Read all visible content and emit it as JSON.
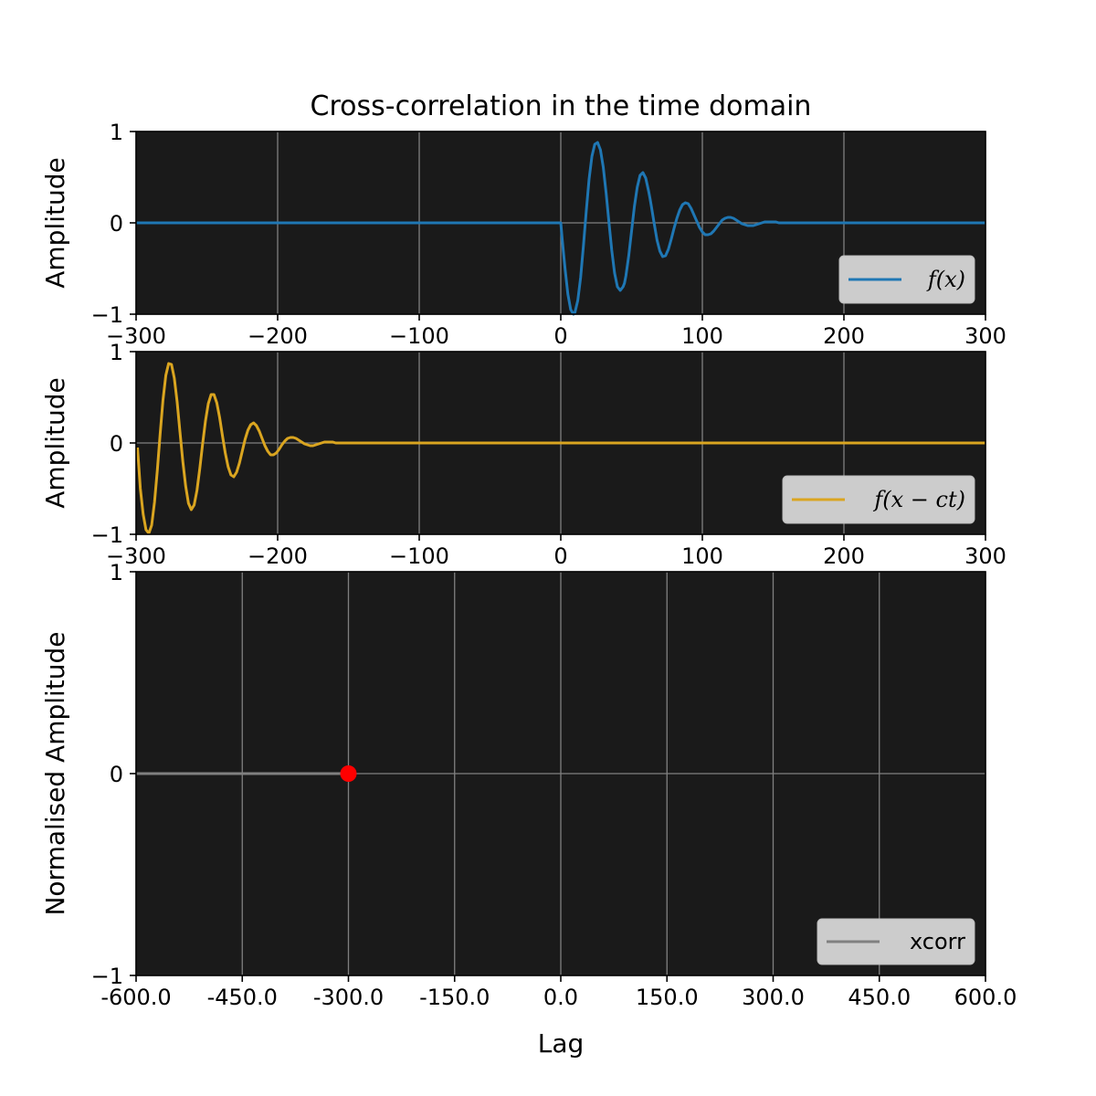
{
  "colors": {
    "background": "#1a1a1a",
    "grid": "#808080",
    "signal_f": "#1f77b4",
    "signal_shifted": "#daa520",
    "xcorr": "#808080",
    "marker": "#ff0000",
    "legend_bg": "#cccccc"
  },
  "chart_data": [
    {
      "type": "line",
      "title": "Cross-correlation in the time domain",
      "xlabel": "",
      "ylabel": "Amplitude",
      "xlim": [
        -300,
        300
      ],
      "ylim": [
        -1,
        1
      ],
      "grid": true,
      "legend_position": "lower-right",
      "xtick_labels": [
        "−300",
        "−200",
        "−100",
        "0",
        "100",
        "200",
        "300"
      ],
      "ytick_labels": [
        "1",
        "0",
        "−1"
      ],
      "series": [
        {
          "name": "f(x)",
          "color": "#1f77b4",
          "x": [
            -300,
            0,
            1,
            3,
            5,
            7,
            9,
            10,
            12,
            14,
            16,
            18,
            20,
            22,
            24,
            26,
            28,
            30,
            32,
            34,
            36,
            38,
            40,
            42,
            44,
            45,
            46,
            48,
            50,
            52,
            54,
            56,
            58,
            60,
            62,
            63,
            64,
            66,
            68,
            70,
            72,
            74,
            76,
            78,
            80,
            82,
            84,
            86,
            88,
            90,
            92,
            94,
            96,
            98,
            100,
            102,
            104,
            106,
            108,
            110,
            112,
            114,
            116,
            118,
            120,
            122,
            124,
            126,
            128,
            130,
            132,
            134,
            136,
            138,
            140,
            142,
            144,
            146,
            148,
            150,
            152,
            154,
            156,
            158,
            160,
            162,
            164,
            166,
            168,
            170,
            172,
            174,
            176,
            178,
            180,
            300
          ],
          "values": [
            0,
            0,
            -0.18,
            -0.5,
            -0.78,
            -0.95,
            -1.0,
            -0.98,
            -0.85,
            -0.6,
            -0.25,
            0.13,
            0.48,
            0.73,
            0.86,
            0.88,
            0.8,
            0.61,
            0.33,
            0.01,
            -0.3,
            -0.55,
            -0.7,
            -0.74,
            -0.7,
            -0.66,
            -0.58,
            -0.36,
            -0.09,
            0.18,
            0.39,
            0.52,
            0.55,
            0.49,
            0.35,
            0.27,
            0.18,
            -0.01,
            -0.19,
            -0.31,
            -0.37,
            -0.36,
            -0.29,
            -0.18,
            -0.06,
            0.05,
            0.14,
            0.2,
            0.22,
            0.21,
            0.16,
            0.09,
            0.02,
            -0.05,
            -0.1,
            -0.13,
            -0.13,
            -0.12,
            -0.09,
            -0.05,
            -0.01,
            0.03,
            0.05,
            0.06,
            0.06,
            0.05,
            0.03,
            0.01,
            -0.01,
            -0.02,
            -0.03,
            -0.03,
            -0.03,
            -0.02,
            -0.01,
            0.0,
            0.01,
            0.01,
            0.01,
            0.01,
            0.01,
            0.0,
            0.0,
            0.0,
            0.0,
            0.0,
            0.0,
            0.0,
            0.0,
            0.0,
            0.0,
            0.0,
            0.0,
            0.0,
            0.0,
            0
          ]
        }
      ]
    },
    {
      "type": "line",
      "title": "",
      "xlabel": "",
      "ylabel": "Amplitude",
      "xlim": [
        -300,
        300
      ],
      "ylim": [
        -1,
        1
      ],
      "grid": true,
      "legend_position": "lower-right",
      "xtick_labels": [
        "−300",
        "−200",
        "−100",
        "0",
        "100",
        "200",
        "300"
      ],
      "ytick_labels": [
        "1",
        "0",
        "−1"
      ],
      "series": [
        {
          "name": "f(x − ct)",
          "color": "#daa520",
          "x": [
            -299,
            -297,
            -295,
            -293,
            -291,
            -289,
            -287,
            -285,
            -283,
            -281,
            -279,
            -277,
            -275,
            -273,
            -271,
            -269,
            -267,
            -265,
            -263,
            -261,
            -259,
            -257,
            -255,
            -253,
            -251,
            -249,
            -247,
            -245,
            -243,
            -241,
            -239,
            -237,
            -235,
            -233,
            -231,
            -229,
            -227,
            -225,
            -223,
            -221,
            -219,
            -217,
            -215,
            -213,
            -211,
            -209,
            -207,
            -205,
            -203,
            -201,
            -199,
            -197,
            -195,
            -193,
            -191,
            -189,
            -187,
            -185,
            -183,
            -181,
            -179,
            -177,
            -175,
            -173,
            -171,
            -169,
            -167,
            -165,
            -163,
            -161,
            -159,
            -157,
            -155,
            -153,
            -151,
            -149,
            -147,
            -145,
            -143,
            -141,
            -139,
            -137,
            -135,
            -133,
            -131,
            -129,
            -127,
            -125,
            -123,
            -121,
            -119,
            300
          ],
          "values": [
            -0.05,
            -0.5,
            -0.78,
            -0.95,
            -0.99,
            -0.9,
            -0.65,
            -0.3,
            0.1,
            0.47,
            0.74,
            0.87,
            0.86,
            0.71,
            0.45,
            0.12,
            -0.2,
            -0.47,
            -0.66,
            -0.73,
            -0.68,
            -0.52,
            -0.28,
            -0.01,
            0.24,
            0.43,
            0.53,
            0.53,
            0.44,
            0.28,
            0.08,
            -0.11,
            -0.26,
            -0.35,
            -0.37,
            -0.32,
            -0.22,
            -0.09,
            0.04,
            0.14,
            0.2,
            0.22,
            0.19,
            0.13,
            0.05,
            -0.03,
            -0.09,
            -0.13,
            -0.13,
            -0.11,
            -0.07,
            -0.02,
            0.02,
            0.05,
            0.06,
            0.06,
            0.05,
            0.03,
            0.01,
            -0.01,
            -0.02,
            -0.03,
            -0.03,
            -0.02,
            -0.01,
            0.0,
            0.01,
            0.01,
            0.01,
            0.01,
            0.0,
            0.0,
            0.0,
            0.0,
            0.0,
            0.0,
            0.0,
            0.0,
            0.0,
            0.0,
            0.0,
            0.0,
            0.0,
            0.0,
            0.0,
            0.0,
            0.0,
            0.0,
            0.0,
            0.0,
            0.0,
            0
          ]
        }
      ]
    },
    {
      "type": "line",
      "title": "",
      "xlabel": "Lag",
      "ylabel": "Normalised Amplitude",
      "xlim": [
        -600,
        600
      ],
      "ylim": [
        -1,
        1
      ],
      "grid": true,
      "legend_position": "lower-right",
      "xtick_labels": [
        "-600.0",
        "-450.0",
        "-300.0",
        "-150.0",
        "0.0",
        "150.0",
        "300.0",
        "450.0",
        "600.0"
      ],
      "ytick_labels": [
        "1",
        "0",
        "−1"
      ],
      "series": [
        {
          "name": "xcorr",
          "color": "#808080",
          "x": [
            -600,
            -300
          ],
          "values": [
            0,
            0
          ]
        }
      ],
      "marker": {
        "x": -300,
        "y": 0,
        "color": "#ff0000"
      }
    }
  ]
}
